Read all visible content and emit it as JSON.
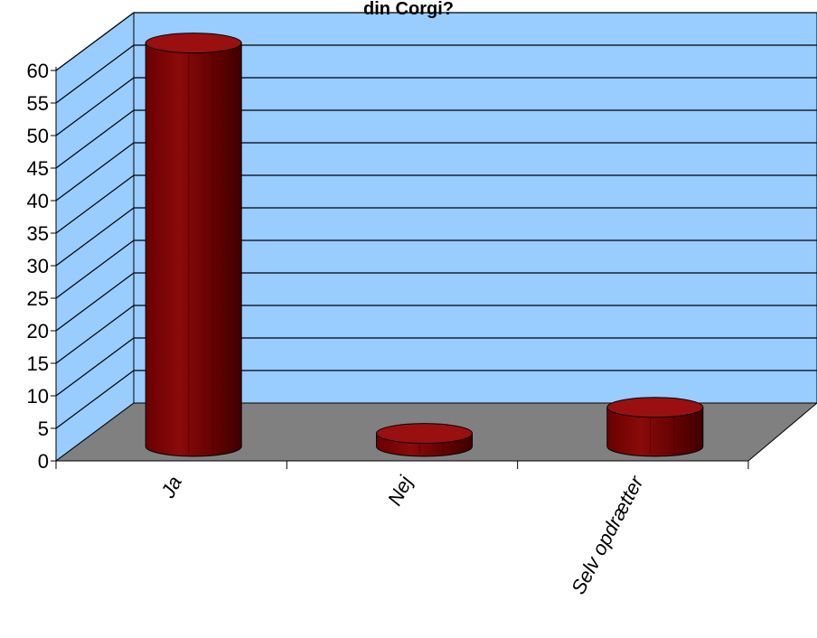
{
  "chart_data": {
    "type": "bar",
    "title": "din Corgi?",
    "categories": [
      "Ja",
      "Nej",
      "Selv opdrætter"
    ],
    "values": [
      62,
      2,
      6
    ],
    "ylim": [
      0,
      60
    ],
    "ytick_step": 5,
    "xlabel": "",
    "ylabel": "",
    "grid": true,
    "legend": "none",
    "style": "3d-cylinder",
    "colors": {
      "bar": "#800000",
      "bar_dark": "#4a0000",
      "bar_top": "#9a1010",
      "back_wall": "#99ccff",
      "floor": "#808080"
    }
  }
}
